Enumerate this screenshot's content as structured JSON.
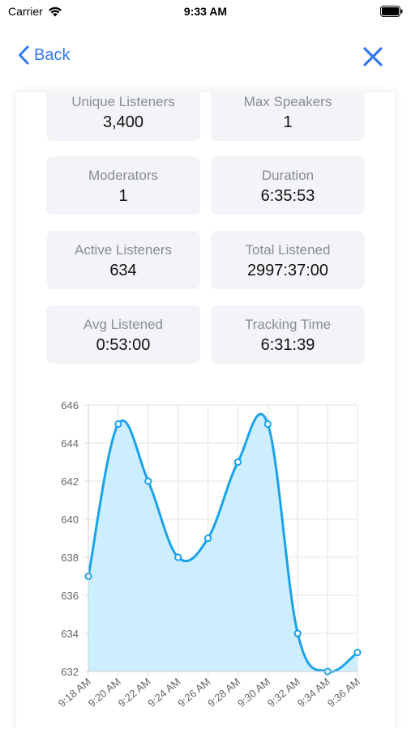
{
  "status_bar": {
    "carrier": "Carrier",
    "time": "9:33 AM"
  },
  "nav": {
    "back_label": "Back",
    "accent_color": "#3478f6"
  },
  "stats": [
    {
      "label": "Unique Listeners",
      "value": "3,400"
    },
    {
      "label": "Max Speakers",
      "value": "1"
    },
    {
      "label": "Moderators",
      "value": "1"
    },
    {
      "label": "Duration",
      "value": "6:35:53"
    },
    {
      "label": "Active Listeners",
      "value": "634"
    },
    {
      "label": "Total Listened",
      "value": "2997:37:00"
    },
    {
      "label": "Avg Listened",
      "value": "0:53:00"
    },
    {
      "label": "Tracking Time",
      "value": "6:31:39"
    }
  ],
  "chart_data": {
    "type": "area",
    "title": "",
    "xlabel": "",
    "ylabel": "",
    "x": [
      "9:18 AM",
      "9:20 AM",
      "9:22 AM",
      "9:24 AM",
      "9:26 AM",
      "9:28 AM",
      "9:30 AM",
      "9:32 AM",
      "9:34 AM",
      "9:36 AM"
    ],
    "series": [
      {
        "values": [
          637,
          645,
          642,
          638,
          639,
          643,
          645,
          634,
          632,
          633
        ]
      }
    ],
    "ylim": [
      632,
      646
    ],
    "yticks": [
      632,
      634,
      636,
      638,
      640,
      642,
      644,
      646
    ],
    "grid": true,
    "line_color": "#1aa3e8",
    "fill_color": "#cdeeff"
  }
}
